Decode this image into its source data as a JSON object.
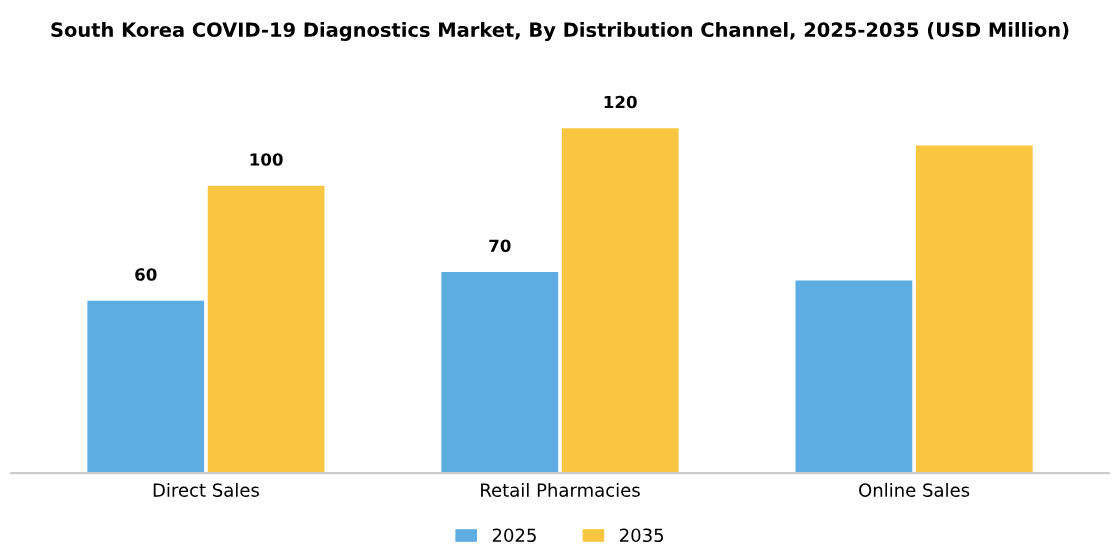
{
  "chart_data": {
    "type": "bar",
    "title": "South Korea COVID-19 Diagnostics Market, By Distribution Channel, 2025-2035 (USD Million)",
    "categories": [
      "Direct Sales",
      "Retail Pharmacies",
      "Online Sales"
    ],
    "series": [
      {
        "name": "2025",
        "color": "#5dade2",
        "values": [
          60,
          70,
          67
        ],
        "value_labels": [
          "60",
          "70",
          null
        ]
      },
      {
        "name": "2035",
        "color": "#f9c642",
        "values": [
          100,
          120,
          114
        ],
        "value_labels": [
          "100",
          "120",
          null
        ]
      }
    ],
    "legend": "bottom",
    "grid": false
  }
}
